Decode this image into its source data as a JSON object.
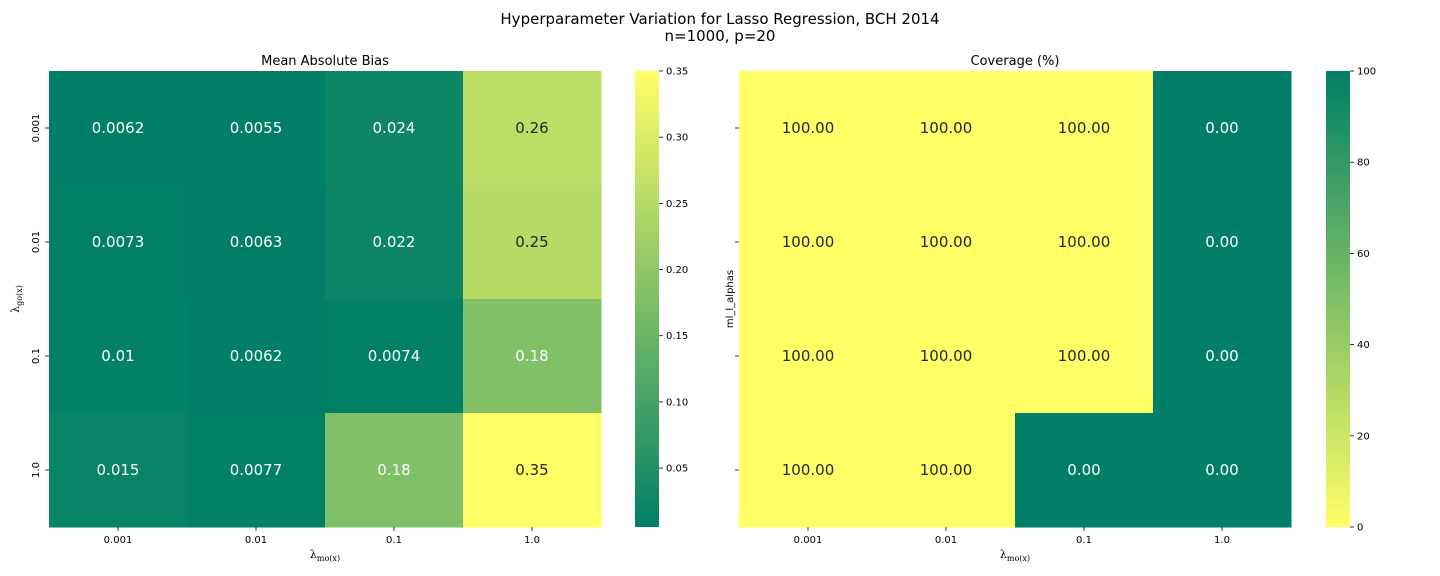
{
  "figure": {
    "title_line1": "Hyperparameter Variation for Lasso Regression, BCH 2014",
    "title_line2": "n=1000, p=20"
  },
  "colormap": {
    "low": "#007f66",
    "high": "#ffff66"
  },
  "chart_data": [
    {
      "type": "heatmap",
      "title": "Mean Absolute Bias",
      "xlabel": "λ_{m_o(x)}",
      "ylabel": "λ_{g_o(x)}",
      "x_categories": [
        "0.001",
        "0.01",
        "0.1",
        "1.0"
      ],
      "y_categories": [
        "0.001",
        "0.01",
        "0.1",
        "1.0"
      ],
      "values": [
        [
          0.0062,
          0.0055,
          0.024,
          0.26
        ],
        [
          0.0073,
          0.0063,
          0.022,
          0.25
        ],
        [
          0.01,
          0.0062,
          0.0074,
          0.18
        ],
        [
          0.015,
          0.0077,
          0.18,
          0.35
        ]
      ],
      "annotations": [
        [
          "0.0062",
          "0.0055",
          "0.024",
          "0.26"
        ],
        [
          "0.0073",
          "0.0063",
          "0.022",
          "0.25"
        ],
        [
          "0.01",
          "0.0062",
          "0.0074",
          "0.18"
        ],
        [
          "0.015",
          "0.0077",
          "0.18",
          "0.35"
        ]
      ],
      "colorbar": {
        "range": [
          0.0055,
          0.35
        ],
        "ticks": [
          0.05,
          0.1,
          0.15,
          0.2,
          0.25,
          0.3,
          0.35
        ],
        "tick_labels": [
          "0.05",
          "0.10",
          "0.15",
          "0.20",
          "0.25",
          "0.30",
          "0.35"
        ]
      }
    },
    {
      "type": "heatmap",
      "title": "Coverage (%)",
      "xlabel": "λ_{m_o(x)}",
      "ylabel": "ml_l_alphas",
      "x_categories": [
        "0.001",
        "0.01",
        "0.1",
        "1.0"
      ],
      "y_categories": [
        "",
        "",
        "",
        ""
      ],
      "values": [
        [
          100,
          100,
          100,
          0
        ],
        [
          100,
          100,
          100,
          0
        ],
        [
          100,
          100,
          100,
          0
        ],
        [
          100,
          100,
          0,
          0
        ]
      ],
      "annotations": [
        [
          "100.00",
          "100.00",
          "100.00",
          "0.00"
        ],
        [
          "100.00",
          "100.00",
          "100.00",
          "0.00"
        ],
        [
          "100.00",
          "100.00",
          "100.00",
          "0.00"
        ],
        [
          "100.00",
          "100.00",
          "0.00",
          "0.00"
        ]
      ],
      "colorbar": {
        "range": [
          0,
          100
        ],
        "reversed": true,
        "ticks": [
          0,
          20,
          40,
          60,
          80,
          100
        ],
        "tick_labels": [
          "0",
          "20",
          "40",
          "60",
          "80",
          "100"
        ]
      }
    }
  ]
}
